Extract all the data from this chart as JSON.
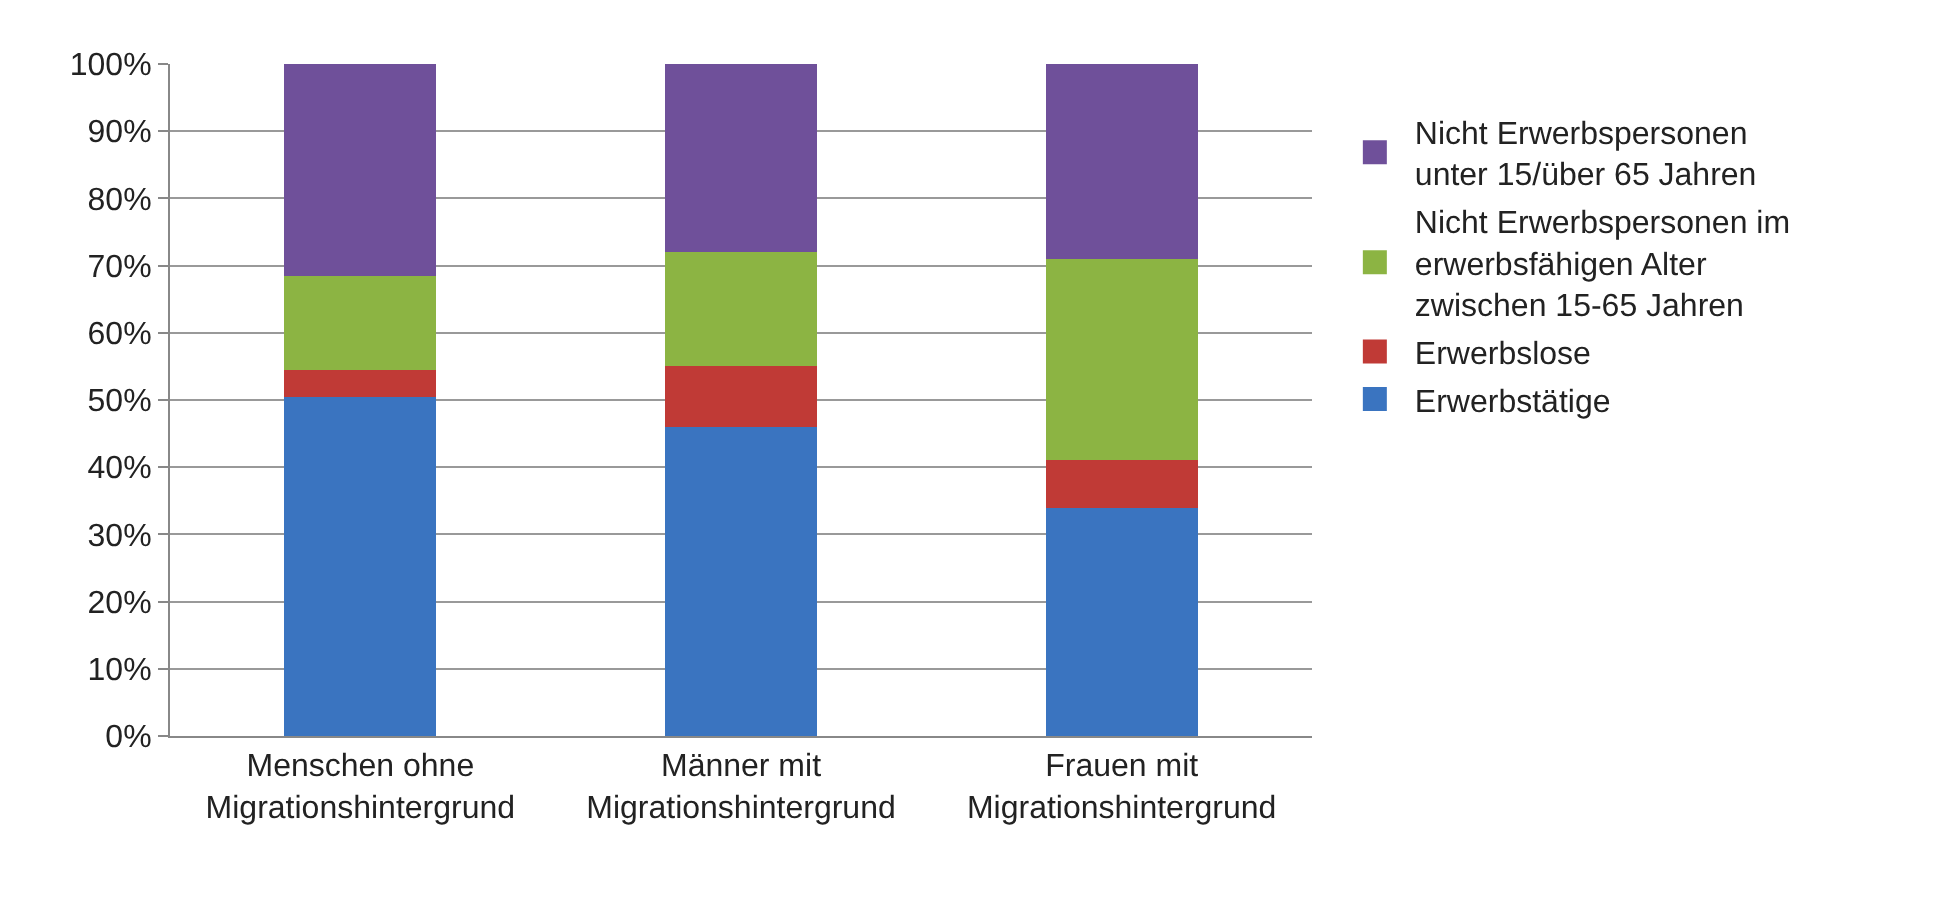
{
  "chart_data": {
    "type": "bar",
    "stacked": true,
    "categories": [
      "Menschen ohne Migrationshintergrund",
      "Männer mit Migrationshintergrund",
      "Frauen mit Migrationshintergrund"
    ],
    "series": [
      {
        "name": "Erwerbstätige",
        "color": "#3a74c0",
        "values": [
          50.5,
          46,
          34
        ]
      },
      {
        "name": "Erwerbslose",
        "color": "#c03a36",
        "values": [
          4,
          9,
          7
        ]
      },
      {
        "name": "Nicht Erwerbspersonen im erwerbsfähigen Alter zwischen 15-65 Jahren",
        "color": "#8cb443",
        "values": [
          14,
          17,
          30
        ]
      },
      {
        "name": "Nicht Erwerbspersonen unter 15/über 65 Jahren",
        "color": "#6f509a",
        "values": [
          31.5,
          28,
          29
        ]
      }
    ],
    "ylim": [
      0,
      100
    ],
    "yticks": [
      {
        "value": 0,
        "label": "0%"
      },
      {
        "value": 10,
        "label": "10%"
      },
      {
        "value": 20,
        "label": "20%"
      },
      {
        "value": 30,
        "label": "30%"
      },
      {
        "value": 40,
        "label": "40%"
      },
      {
        "value": 50,
        "label": "50%"
      },
      {
        "value": 60,
        "label": "60%"
      },
      {
        "value": 70,
        "label": "70%"
      },
      {
        "value": 80,
        "label": "80%"
      },
      {
        "value": 90,
        "label": "90%"
      },
      {
        "value": 100,
        "label": "100%"
      }
    ],
    "grid": "y",
    "legend": "right"
  }
}
